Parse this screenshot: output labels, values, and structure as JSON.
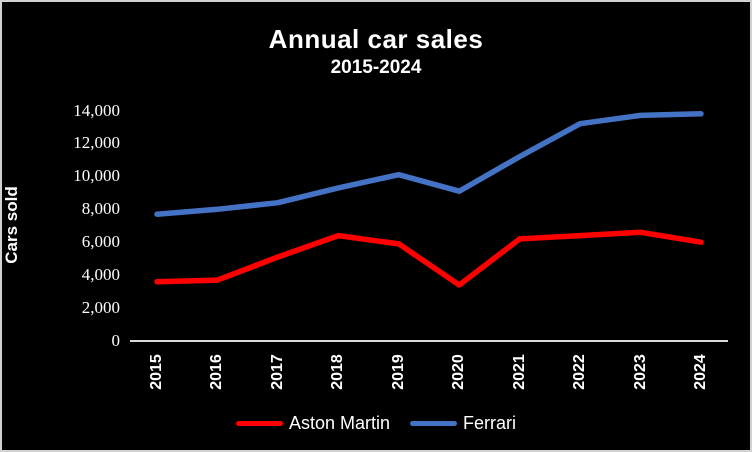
{
  "window": {
    "background_color": "#000000",
    "border_color": "#d2d2d2",
    "text_color": "#ffffff"
  },
  "chart_data": {
    "type": "line",
    "title": "Annual car sales",
    "subtitle": "2015-2024",
    "xlabel": "",
    "ylabel": "Cars sold",
    "categories": [
      "2015",
      "2016",
      "2017",
      "2018",
      "2019",
      "2020",
      "2021",
      "2022",
      "2023",
      "2024"
    ],
    "series": [
      {
        "name": "Aston Martin",
        "color": "#ff0000",
        "values": [
          3600,
          3700,
          5100,
          6400,
          5900,
          3400,
          6200,
          6400,
          6600,
          6000
        ]
      },
      {
        "name": "Ferrari",
        "color": "#4472c4",
        "values": [
          7700,
          8000,
          8400,
          9300,
          10100,
          9100,
          11200,
          13200,
          13700,
          13800
        ]
      }
    ],
    "ylim": [
      0,
      14000
    ],
    "ytick_step": 2000,
    "ytick_labels": [
      "0",
      "2,000",
      "4,000",
      "6,000",
      "8,000",
      "10,000",
      "12,000",
      "14,000"
    ],
    "grid": false,
    "legend_position": "bottom",
    "axis_line_color": "#d9d9d9"
  }
}
